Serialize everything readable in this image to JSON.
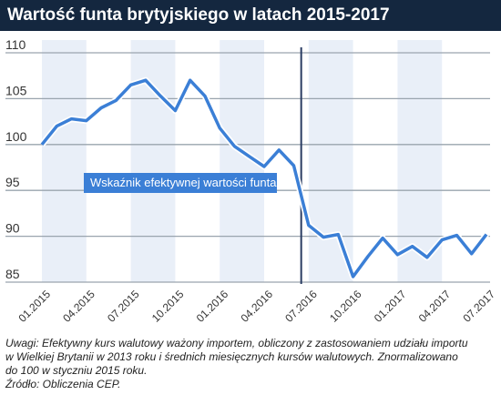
{
  "header": {
    "title": "Wartość funta brytyjskiego w latach 2015-2017"
  },
  "colors": {
    "header_bg": "#14273f",
    "band": "#e9eff8",
    "line": "#3b7fd6",
    "line_halo": "#ffffff",
    "grid": "#9aa4ae",
    "vline": "#2b3d63",
    "label_bg": "#3b7fd6",
    "label_text": "#ffffff"
  },
  "chart_data": {
    "type": "line",
    "title": "Wartość funta brytyjskiego w latach 2015-2017",
    "ylim": [
      85,
      110
    ],
    "yticks": [
      85,
      90,
      95,
      100,
      105,
      110
    ],
    "grid": true,
    "x": [
      "01.2015",
      "02.2015",
      "03.2015",
      "04.2015",
      "05.2015",
      "06.2015",
      "07.2015",
      "08.2015",
      "09.2015",
      "10.2015",
      "11.2015",
      "12.2015",
      "01.2016",
      "02.2016",
      "03.2016",
      "04.2016",
      "05.2016",
      "06.2016",
      "07.2016",
      "08.2016",
      "09.2016",
      "10.2016",
      "11.2016",
      "12.2016",
      "01.2017",
      "02.2017",
      "03.2017",
      "04.2017",
      "05.2017",
      "06.2017",
      "07.2017"
    ],
    "xtick_labels": [
      "01.2015",
      "04.2015",
      "07.2015",
      "10.2015",
      "01.2016",
      "04.2016",
      "07.2016",
      "10.2016",
      "01.2017",
      "04.2017",
      "07.2017"
    ],
    "series": [
      {
        "name": "Wskaźnik efektywnej wartości funta",
        "values": [
          100.0,
          102.0,
          102.8,
          102.6,
          104.0,
          104.8,
          106.5,
          107.0,
          105.3,
          103.7,
          107.0,
          105.3,
          101.8,
          99.8,
          98.7,
          97.6,
          99.4,
          97.7,
          91.2,
          89.9,
          90.2,
          85.6,
          87.8,
          89.8,
          88.0,
          88.9,
          87.7,
          89.6,
          90.1,
          88.1,
          90.2
        ]
      }
    ],
    "annotations": [
      {
        "type": "vertical_line",
        "x": "06.2016"
      },
      {
        "type": "label",
        "text": "Wskaźnik efektywnej wartości funta"
      }
    ]
  },
  "footer": {
    "note_lines": [
      "Uwagi: Efektywny kurs walutowy ważony importem, obliczony z zastosowaniem udziału importu",
      "w Wielkiej Brytanii w 2013 roku i średnich miesięcznych kursów walutowych. Znormalizowano",
      "do 100 w styczniu 2015 roku."
    ],
    "source": "Źródło: Obliczenia CEP."
  }
}
